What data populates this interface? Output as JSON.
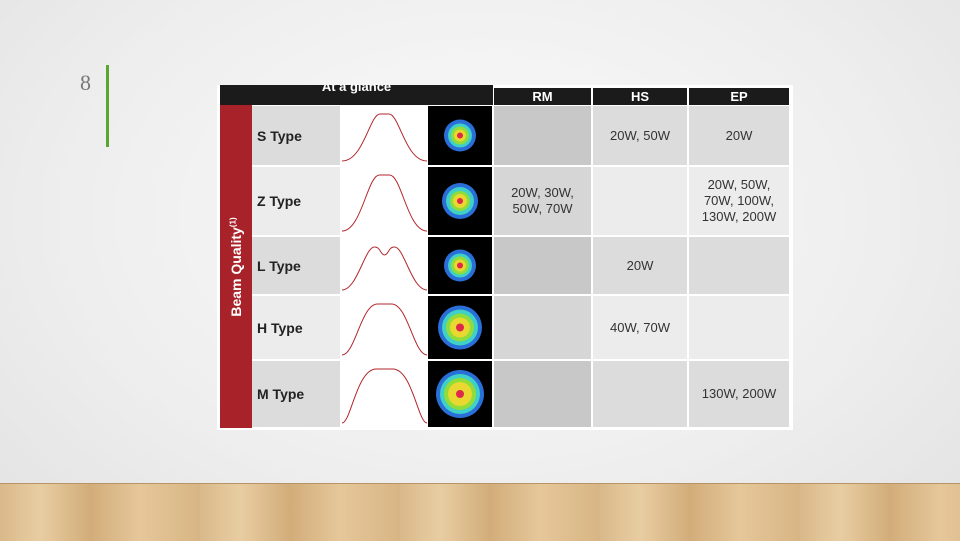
{
  "slide_number": "8",
  "table": {
    "caption": "At a glance",
    "side_label": "Beam Quality",
    "side_label_note": "(1)",
    "columns": [
      "RM",
      "HS",
      "EP"
    ],
    "rows": [
      {
        "type": "S Type",
        "cells": [
          null,
          "20W, 50W",
          "20W"
        ]
      },
      {
        "type": "Z Type",
        "cells": [
          "20W, 30W, 50W, 70W",
          null,
          "20W, 50W, 70W, 100W, 130W, 200W"
        ]
      },
      {
        "type": "L Type",
        "cells": [
          null,
          "20W",
          null
        ]
      },
      {
        "type": "H Type",
        "cells": [
          null,
          "40W, 70W",
          null
        ]
      },
      {
        "type": "M Type",
        "cells": [
          null,
          null,
          "130W, 200W"
        ]
      }
    ]
  }
}
